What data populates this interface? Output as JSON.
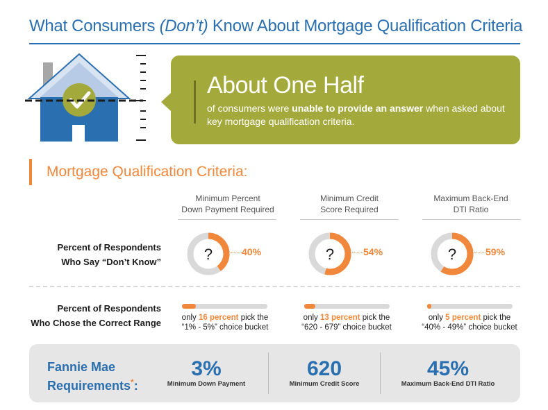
{
  "title": {
    "part1": "What Consumers ",
    "part2": "(Don’t)",
    "part3": " Know About Mortgage Qualification Criteria"
  },
  "callout": {
    "headline": "About One Half",
    "text_pre": "of consumers were ",
    "text_bold": "unable to provide an answer",
    "text_post": " when asked about key mortgage qualification criteria."
  },
  "section_title": "Mortgage Qualification Criteria:",
  "columns": [
    {
      "header_line1": "Minimum Percent",
      "header_line2": "Down Payment Required",
      "dont_know_label": "40%",
      "dont_know_value": 40,
      "correct_value": 16,
      "range_pre": "only ",
      "range_hl": "16 percent",
      "range_post": " pick the",
      "range_line2": "“1% - 5%” choice bucket"
    },
    {
      "header_line1": "Minimum Credit",
      "header_line2": "Score Required",
      "dont_know_label": "54%",
      "dont_know_value": 54,
      "correct_value": 13,
      "range_pre": "only ",
      "range_hl": "13 percent",
      "range_post": " pick the",
      "range_line2": "“620 - 679” choice bucket"
    },
    {
      "header_line1": "Maximum Back-End",
      "header_line2": "DTI Ratio",
      "dont_know_label": "59%",
      "dont_know_value": 59,
      "correct_value": 5,
      "range_pre": "only ",
      "range_hl": "5 percent",
      "range_post": " pick the",
      "range_line2": "“40% - 49%” choice bucket"
    }
  ],
  "row1_label": {
    "line1": "Percent of Respondents",
    "line2": "Who Say “Don’t Know”"
  },
  "row2_label": {
    "line1": "Percent of Respondents",
    "line2": "Who Chose the Correct Range"
  },
  "question_mark": "?",
  "footer": {
    "title_line1": "Fannie Mae",
    "title_line2": "Requirements",
    "title_mark": "*",
    "title_colon": ":",
    "items": [
      {
        "value": "3%",
        "label": "Minimum Down Payment"
      },
      {
        "value": "620",
        "label": "Minimum Credit Score"
      },
      {
        "value": "45%",
        "label": "Maximum Back-End DTI Ratio"
      }
    ]
  },
  "colors": {
    "blue": "#2a6fb0",
    "orange": "#f0873a",
    "olive": "#a3a93b",
    "gray_track": "#d9d9d9"
  },
  "icons": [
    "house-icon",
    "checkmark-icon"
  ]
}
